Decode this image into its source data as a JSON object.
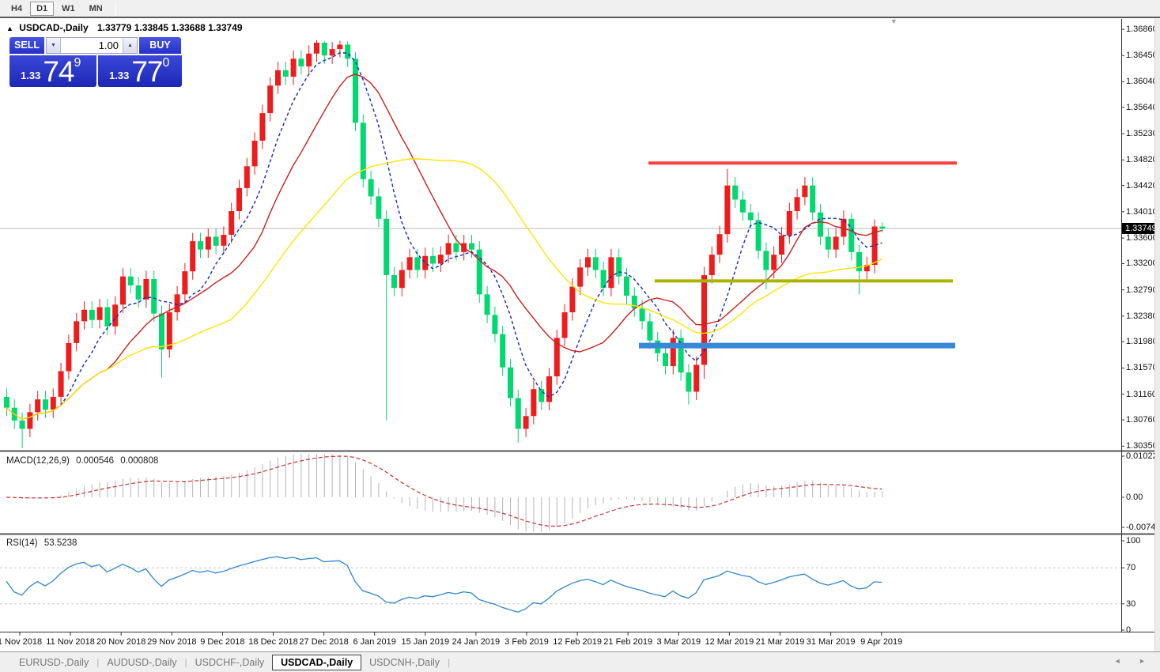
{
  "toolbar": {
    "timeframes": [
      {
        "label": "H4",
        "active": false
      },
      {
        "label": "D1",
        "active": true
      },
      {
        "label": "W1",
        "active": false
      },
      {
        "label": "MN",
        "active": false
      }
    ]
  },
  "chart": {
    "header": {
      "collapse_icon": "▲",
      "title": "USDCAD-,Daily",
      "open": "1.33779",
      "high": "1.33845",
      "low": "1.33688",
      "close": "1.33749"
    },
    "one_click": {
      "sell_label": "SELL",
      "buy_label": "BUY",
      "volume": "1.00",
      "sell_price_small": "1.33",
      "sell_price_big": "74",
      "sell_price_sup": "9",
      "buy_price_small": "1.33",
      "buy_price_big": "77",
      "buy_price_sup": "0",
      "spinner_down_icon": "▼",
      "spinner_up_icon": "▲"
    },
    "price_axis": {
      "ticks": [
        "1.36860",
        "1.36450",
        "1.36040",
        "1.35640",
        "1.35230",
        "1.34820",
        "1.34420",
        "1.34010",
        "1.33600",
        "1.33200",
        "1.32790",
        "1.32380",
        "1.31980",
        "1.31570",
        "1.31160",
        "1.30760",
        "1.30350"
      ],
      "current": "1.33749"
    },
    "shift_marker_icon": "▼"
  },
  "indicators": {
    "macd": {
      "label": "MACD(12,26,9)",
      "value_main": "0.000546",
      "value_signal": "0.000808",
      "axis_ticks": [
        "0.010229",
        "0.00",
        "-0.007477"
      ]
    },
    "rsi": {
      "label": "RSI(14)",
      "value": "53.5238",
      "axis_ticks": [
        "100",
        "70",
        "30",
        "0"
      ]
    }
  },
  "bottom_tabs": [
    {
      "label": "EURUSD-,Daily",
      "active": false
    },
    {
      "label": "AUDUSD-,Daily",
      "active": false
    },
    {
      "label": "USDCHF-,Daily",
      "active": false
    },
    {
      "label": "USDCAD-,Daily",
      "active": true
    },
    {
      "label": "USDCNH-,Daily",
      "active": false
    }
  ],
  "tab_scroll": {
    "left_icon": "◄",
    "right_icon": "►"
  },
  "colors": {
    "bull_candle": "#ee1c1c",
    "bear_candle": "#00d870",
    "ma_fast": "#1428c8",
    "ma_mid": "#cc2020",
    "ma_slow": "#ffe400",
    "hline_red": "#f84040",
    "hline_olive": "#aab400",
    "hline_blue": "#3888d8",
    "current_price_line": "#b8b8b8",
    "macd_hist": "#b4b4b4",
    "macd_signal": "#c83232",
    "rsi_line": "#2f86d0",
    "rsi_levels": "#c8c8c8",
    "accent_blue": "#2531c8"
  },
  "chart_data": {
    "type": "candlestick",
    "title": "USDCAD-,Daily",
    "timeframe": "D1",
    "last_ohlc": {
      "open": 1.33779,
      "high": 1.33845,
      "low": 1.33688,
      "close": 1.33749
    },
    "price_range": [
      1.3035,
      1.3686
    ],
    "x_labels": [
      "1 Nov 2018",
      "11 Nov 2018",
      "20 Nov 2018",
      "29 Nov 2018",
      "9 Dec 2018",
      "18 Dec 2018",
      "27 Dec 2018",
      "6 Jan 2019",
      "15 Jan 2019",
      "24 Jan 2019",
      "3 Feb 2019",
      "12 Feb 2019",
      "21 Feb 2019",
      "3 Mar 2019",
      "12 Mar 2019",
      "21 Mar 2019",
      "31 Mar 2019",
      "9 Apr 2019"
    ],
    "candles": [
      [
        1.3112,
        1.3125,
        1.3082,
        1.3095
      ],
      [
        1.3095,
        1.3108,
        1.3062,
        1.3075
      ],
      [
        1.3075,
        1.3088,
        1.3032,
        1.3062
      ],
      [
        1.3062,
        1.3101,
        1.3049,
        1.3088
      ],
      [
        1.3088,
        1.3121,
        1.3075,
        1.3108
      ],
      [
        1.3108,
        1.3121,
        1.3079,
        1.3092
      ],
      [
        1.3092,
        1.3125,
        1.3079,
        1.3112
      ],
      [
        1.3112,
        1.3165,
        1.3099,
        1.3152
      ],
      [
        1.3152,
        1.3209,
        1.3139,
        1.3196
      ],
      [
        1.3196,
        1.3243,
        1.3183,
        1.323
      ],
      [
        1.323,
        1.3261,
        1.3217,
        1.3248
      ],
      [
        1.3248,
        1.3261,
        1.3219,
        1.3232
      ],
      [
        1.3232,
        1.3265,
        1.3219,
        1.3252
      ],
      [
        1.3252,
        1.3265,
        1.3209,
        1.3222
      ],
      [
        1.3222,
        1.3269,
        1.3209,
        1.3256
      ],
      [
        1.3256,
        1.3313,
        1.3243,
        1.33
      ],
      [
        1.33,
        1.3313,
        1.3273,
        1.3286
      ],
      [
        1.3286,
        1.3299,
        1.3251,
        1.3264
      ],
      [
        1.3264,
        1.3309,
        1.3251,
        1.3296
      ],
      [
        1.3296,
        1.3309,
        1.3229,
        1.3242
      ],
      [
        1.3242,
        1.3255,
        1.3142,
        1.3186
      ],
      [
        1.3186,
        1.3257,
        1.3173,
        1.3244
      ],
      [
        1.3244,
        1.3285,
        1.3231,
        1.3272
      ],
      [
        1.3272,
        1.3321,
        1.3259,
        1.3308
      ],
      [
        1.3308,
        1.3368,
        1.3295,
        1.3355
      ],
      [
        1.3355,
        1.3368,
        1.3329,
        1.3342
      ],
      [
        1.3342,
        1.3375,
        1.3329,
        1.3362
      ],
      [
        1.3362,
        1.3375,
        1.3335,
        1.3348
      ],
      [
        1.3348,
        1.3378,
        1.3335,
        1.3365
      ],
      [
        1.3365,
        1.3415,
        1.3352,
        1.3402
      ],
      [
        1.3402,
        1.3451,
        1.3389,
        1.3438
      ],
      [
        1.3438,
        1.3485,
        1.3425,
        1.3472
      ],
      [
        1.3472,
        1.3525,
        1.3459,
        1.3512
      ],
      [
        1.3512,
        1.3568,
        1.3499,
        1.3555
      ],
      [
        1.3555,
        1.3611,
        1.3542,
        1.3598
      ],
      [
        1.3598,
        1.3635,
        1.3585,
        1.3622
      ],
      [
        1.3622,
        1.3635,
        1.3599,
        1.3612
      ],
      [
        1.3612,
        1.3653,
        1.3599,
        1.364
      ],
      [
        1.364,
        1.3653,
        1.3615,
        1.3628
      ],
      [
        1.3628,
        1.3661,
        1.3615,
        1.3648
      ],
      [
        1.3648,
        1.3669,
        1.3635,
        1.3665
      ],
      [
        1.3665,
        1.3667,
        1.3632,
        1.3645
      ],
      [
        1.3645,
        1.3666,
        1.3632,
        1.3655
      ],
      [
        1.3655,
        1.3668,
        1.3642,
        1.3662
      ],
      [
        1.3662,
        1.3667,
        1.3627,
        1.364
      ],
      [
        1.364,
        1.365,
        1.3527,
        1.354
      ],
      [
        1.354,
        1.3553,
        1.3439,
        1.3452
      ],
      [
        1.3452,
        1.3465,
        1.3412,
        1.3425
      ],
      [
        1.3425,
        1.3438,
        1.3377,
        1.339
      ],
      [
        1.339,
        1.3403,
        1.3075,
        1.3302
      ],
      [
        1.3302,
        1.3315,
        1.3269,
        1.3282
      ],
      [
        1.3282,
        1.3323,
        1.3269,
        1.331
      ],
      [
        1.331,
        1.3343,
        1.3297,
        1.333
      ],
      [
        1.333,
        1.3343,
        1.3297,
        1.331
      ],
      [
        1.331,
        1.3345,
        1.3297,
        1.3332
      ],
      [
        1.3332,
        1.3345,
        1.3307,
        1.332
      ],
      [
        1.332,
        1.3347,
        1.3307,
        1.3334
      ],
      [
        1.3334,
        1.3365,
        1.3321,
        1.3352
      ],
      [
        1.3352,
        1.3365,
        1.3325,
        1.3338
      ],
      [
        1.3338,
        1.3365,
        1.3325,
        1.3352
      ],
      [
        1.3352,
        1.3365,
        1.3329,
        1.3342
      ],
      [
        1.3342,
        1.3355,
        1.3259,
        1.3272
      ],
      [
        1.3272,
        1.3285,
        1.3227,
        1.324
      ],
      [
        1.324,
        1.3253,
        1.3197,
        1.321
      ],
      [
        1.321,
        1.3223,
        1.3145,
        1.3158
      ],
      [
        1.3158,
        1.3171,
        1.3097,
        1.311
      ],
      [
        1.311,
        1.3123,
        1.304,
        1.3062
      ],
      [
        1.3062,
        1.3095,
        1.3049,
        1.3082
      ],
      [
        1.3082,
        1.3137,
        1.3069,
        1.3124
      ],
      [
        1.3124,
        1.3137,
        1.3091,
        1.3104
      ],
      [
        1.3104,
        1.3157,
        1.3091,
        1.3144
      ],
      [
        1.3144,
        1.3217,
        1.3131,
        1.3204
      ],
      [
        1.3204,
        1.3257,
        1.3191,
        1.3244
      ],
      [
        1.3244,
        1.3297,
        1.3231,
        1.3284
      ],
      [
        1.3284,
        1.3327,
        1.3271,
        1.3314
      ],
      [
        1.3314,
        1.3343,
        1.3301,
        1.333
      ],
      [
        1.333,
        1.3343,
        1.3297,
        1.331
      ],
      [
        1.331,
        1.3323,
        1.3269,
        1.3282
      ],
      [
        1.3282,
        1.3343,
        1.3269,
        1.333
      ],
      [
        1.333,
        1.3343,
        1.3287,
        1.33
      ],
      [
        1.33,
        1.3313,
        1.3257,
        1.327
      ],
      [
        1.327,
        1.3283,
        1.3237,
        1.325
      ],
      [
        1.325,
        1.3263,
        1.3217,
        1.323
      ],
      [
        1.323,
        1.3243,
        1.3187,
        1.32
      ],
      [
        1.32,
        1.3213,
        1.3167,
        1.318
      ],
      [
        1.318,
        1.3193,
        1.3147,
        1.316
      ],
      [
        1.316,
        1.3217,
        1.3147,
        1.3204
      ],
      [
        1.3204,
        1.3217,
        1.3137,
        1.315
      ],
      [
        1.315,
        1.3163,
        1.31,
        1.312
      ],
      [
        1.312,
        1.3175,
        1.3107,
        1.3162
      ],
      [
        1.3162,
        1.3315,
        1.314,
        1.3302
      ],
      [
        1.3302,
        1.3347,
        1.3289,
        1.3334
      ],
      [
        1.3334,
        1.3379,
        1.3321,
        1.3366
      ],
      [
        1.3366,
        1.3468,
        1.3353,
        1.3442
      ],
      [
        1.3442,
        1.3455,
        1.3407,
        1.342
      ],
      [
        1.342,
        1.3433,
        1.3387,
        1.34
      ],
      [
        1.34,
        1.3413,
        1.3375,
        1.3388
      ],
      [
        1.3388,
        1.3401,
        1.3327,
        1.334
      ],
      [
        1.334,
        1.3353,
        1.328,
        1.331
      ],
      [
        1.331,
        1.3347,
        1.3297,
        1.3334
      ],
      [
        1.3334,
        1.3377,
        1.3321,
        1.3364
      ],
      [
        1.3364,
        1.3415,
        1.3351,
        1.3402
      ],
      [
        1.3402,
        1.3437,
        1.3389,
        1.3424
      ],
      [
        1.3424,
        1.3455,
        1.3411,
        1.3442
      ],
      [
        1.3442,
        1.3455,
        1.3387,
        1.34
      ],
      [
        1.34,
        1.3413,
        1.3349,
        1.3362
      ],
      [
        1.3362,
        1.3375,
        1.3329,
        1.3342
      ],
      [
        1.3342,
        1.3375,
        1.3329,
        1.3362
      ],
      [
        1.3362,
        1.3403,
        1.3349,
        1.339
      ],
      [
        1.339,
        1.3399,
        1.3325,
        1.3338
      ],
      [
        1.3338,
        1.3349,
        1.3272,
        1.3308
      ],
      [
        1.3308,
        1.3331,
        1.3295,
        1.3318
      ],
      [
        1.3318,
        1.3389,
        1.3305,
        1.3378
      ],
      [
        1.33779,
        1.33845,
        1.33688,
        1.33749
      ]
    ],
    "moving_averages": [
      {
        "name": "fast",
        "window": 7,
        "color": "#1428c8",
        "style": "dashed"
      },
      {
        "name": "mid",
        "window": 14,
        "color": "#cc2020",
        "style": "solid"
      },
      {
        "name": "slow",
        "window": 30,
        "color": "#ffe400",
        "style": "solid"
      }
    ],
    "horizontal_lines": [
      {
        "name": "resistance",
        "price": 1.3477,
        "color": "#f84040",
        "thickness": 4
      },
      {
        "name": "support-olive",
        "price": 1.3293,
        "color": "#aab400",
        "thickness": 4
      },
      {
        "name": "support-blue",
        "price": 1.3192,
        "color": "#3888d8",
        "thickness": 7
      }
    ],
    "current_price": 1.33749,
    "macd": {
      "fast": 12,
      "slow": 26,
      "signal": 9,
      "axis_range": [
        -0.007477,
        0.010229
      ],
      "last_main": 0.000546,
      "last_signal": 0.000808
    },
    "rsi": {
      "period": 14,
      "last": 53.5238,
      "levels": [
        30,
        70
      ],
      "axis_range": [
        0,
        100
      ]
    }
  }
}
